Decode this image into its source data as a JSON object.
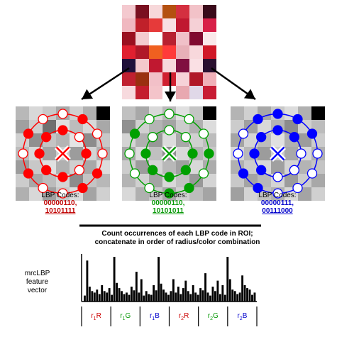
{
  "panels": [
    {
      "name": "red",
      "color": "#ff0000",
      "header": "LBP Codes:",
      "code1": "00000110,",
      "code2": "10101111"
    },
    {
      "name": "green",
      "color": "#00a000",
      "header": "LBP Codes:",
      "code1": "00000110,",
      "code2": "10101011"
    },
    {
      "name": "blue",
      "color": "#0000ff",
      "header": "LBP Codes:",
      "code1": "00000111,",
      "code2": "00111000"
    }
  ],
  "caption": {
    "line1": "Count occurrences of each LBP code in ROI;",
    "line2": "concatenate in order of radius/color combination"
  },
  "feature_label": {
    "line1": "mrcLBP",
    "line2": "feature",
    "line3": "vector"
  },
  "segments": [
    {
      "r": "r",
      "sub": "1",
      "c": "R",
      "color": "#cc0000"
    },
    {
      "r": "r",
      "sub": "1",
      "c": "G",
      "color": "#0a9a0a"
    },
    {
      "r": "r",
      "sub": "1",
      "c": "B",
      "color": "#0000cc"
    },
    {
      "r": "r",
      "sub": "2",
      "c": "R",
      "color": "#cc0000"
    },
    {
      "r": "r",
      "sub": "2",
      "c": "G",
      "color": "#0a9a0a"
    },
    {
      "r": "r",
      "sub": "2",
      "c": "B",
      "color": "#0000cc"
    }
  ],
  "histogram": [
    8,
    55,
    20,
    14,
    12,
    16,
    10,
    22,
    14,
    12,
    18,
    9,
    60,
    25,
    18,
    14,
    10,
    12,
    9,
    20,
    15,
    40,
    12,
    30,
    8,
    14,
    10,
    9,
    22,
    15,
    60,
    24,
    16,
    12,
    9,
    14,
    30,
    12,
    20,
    10,
    18,
    28,
    14,
    10,
    22,
    12,
    9,
    18,
    15,
    38,
    12,
    8,
    20,
    14,
    28,
    10,
    22,
    9,
    60,
    30,
    16,
    14,
    10,
    12,
    35,
    22,
    18,
    16,
    9,
    12
  ]
}
